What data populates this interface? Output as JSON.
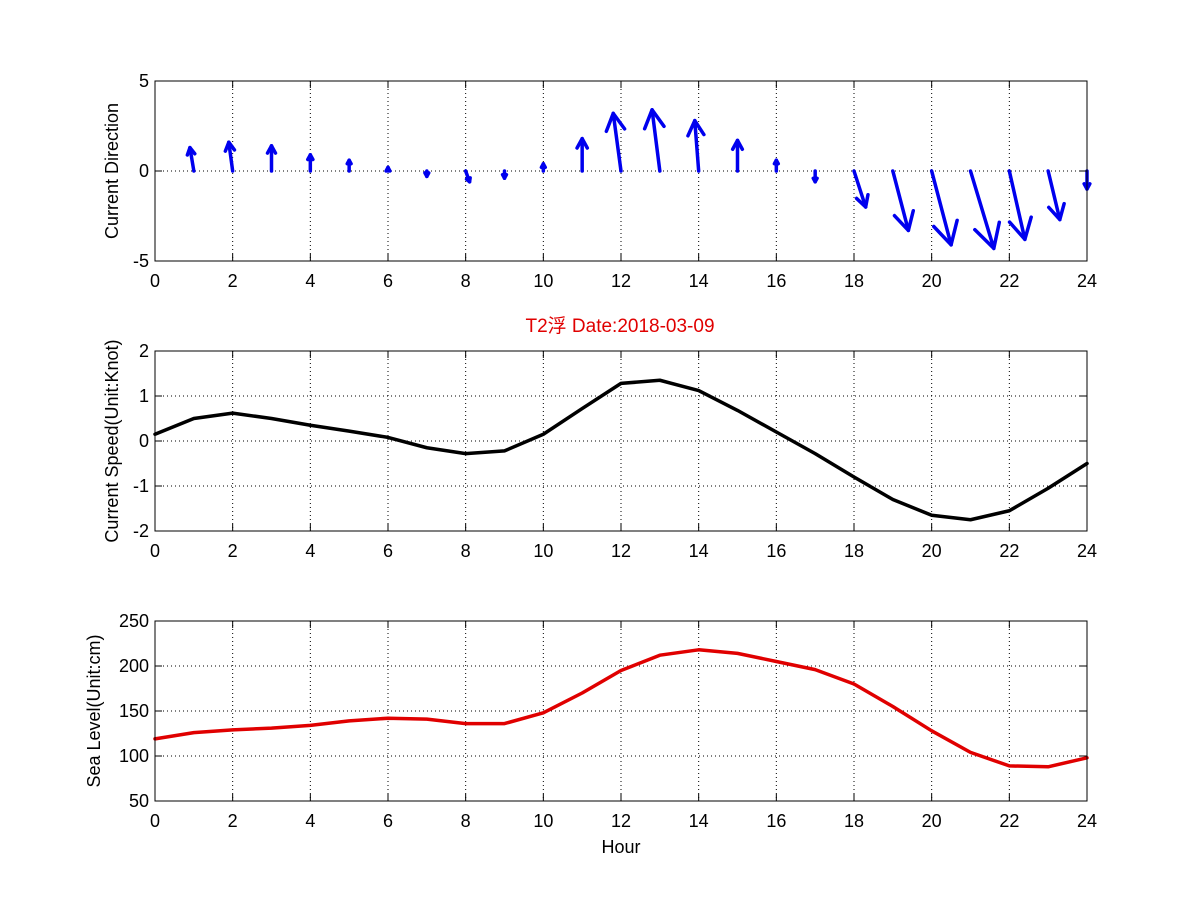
{
  "figure": {
    "title": "T2浮   Date:2018-03-09",
    "title_color": "#e00000"
  },
  "chart_data": [
    {
      "type": "quiver",
      "ylabel": "Current Direction",
      "xlabel": "",
      "xlim": [
        0,
        24
      ],
      "ylim": [
        -5,
        5
      ],
      "xticks": [
        0,
        2,
        4,
        6,
        8,
        10,
        12,
        14,
        16,
        18,
        20,
        22,
        24
      ],
      "yticks": [
        -5,
        0,
        5
      ],
      "grid": true,
      "color": "#0000ee",
      "x": [
        1,
        2,
        3,
        4,
        5,
        6,
        7,
        8,
        9,
        10,
        11,
        12,
        13,
        14,
        15,
        16,
        17,
        18,
        19,
        20,
        21,
        22,
        23,
        24
      ],
      "u": [
        -0.1,
        -0.1,
        0.0,
        0.0,
        0.0,
        0.0,
        0.0,
        0.1,
        0.0,
        0.0,
        0.0,
        -0.2,
        -0.2,
        -0.1,
        0.0,
        0.0,
        0.0,
        0.3,
        0.4,
        0.5,
        0.6,
        0.4,
        0.3,
        0.0
      ],
      "v": [
        1.3,
        1.6,
        1.4,
        0.9,
        0.6,
        0.2,
        -0.3,
        -0.6,
        -0.4,
        0.4,
        1.8,
        3.2,
        3.4,
        2.8,
        1.7,
        0.6,
        -0.6,
        -2.0,
        -3.3,
        -4.1,
        -4.3,
        -3.8,
        -2.7,
        -1.0
      ]
    },
    {
      "type": "line",
      "ylabel": "Current Speed(Unit:Knot)",
      "xlabel": "",
      "xlim": [
        0,
        24
      ],
      "ylim": [
        -2,
        2
      ],
      "xticks": [
        0,
        2,
        4,
        6,
        8,
        10,
        12,
        14,
        16,
        18,
        20,
        22,
        24
      ],
      "yticks": [
        -2,
        -1,
        0,
        1,
        2
      ],
      "grid": true,
      "series": [
        {
          "color": "#000000",
          "x": [
            0,
            1,
            2,
            3,
            4,
            5,
            6,
            7,
            8,
            9,
            10,
            11,
            12,
            13,
            14,
            15,
            16,
            17,
            18,
            19,
            20,
            21,
            22,
            23,
            24
          ],
          "values": [
            0.15,
            0.5,
            0.62,
            0.5,
            0.35,
            0.22,
            0.08,
            -0.15,
            -0.28,
            -0.22,
            0.15,
            0.72,
            1.28,
            1.35,
            1.12,
            0.68,
            0.2,
            -0.28,
            -0.8,
            -1.3,
            -1.65,
            -1.75,
            -1.55,
            -1.05,
            -0.5
          ]
        }
      ]
    },
    {
      "type": "line",
      "ylabel": "Sea Level(Unit:cm)",
      "xlabel": "Hour",
      "xlim": [
        0,
        24
      ],
      "ylim": [
        50,
        250
      ],
      "xticks": [
        0,
        2,
        4,
        6,
        8,
        10,
        12,
        14,
        16,
        18,
        20,
        22,
        24
      ],
      "yticks": [
        50,
        100,
        150,
        200,
        250
      ],
      "grid": true,
      "series": [
        {
          "color": "#e00000",
          "x": [
            0,
            1,
            2,
            3,
            4,
            5,
            6,
            7,
            8,
            9,
            10,
            11,
            12,
            13,
            14,
            15,
            16,
            17,
            18,
            19,
            20,
            21,
            22,
            23,
            24
          ],
          "values": [
            119,
            126,
            129,
            131,
            134,
            139,
            142,
            141,
            136,
            136,
            148,
            170,
            195,
            212,
            218,
            214,
            205,
            196,
            180,
            155,
            128,
            104,
            89,
            88,
            98
          ]
        }
      ]
    }
  ]
}
